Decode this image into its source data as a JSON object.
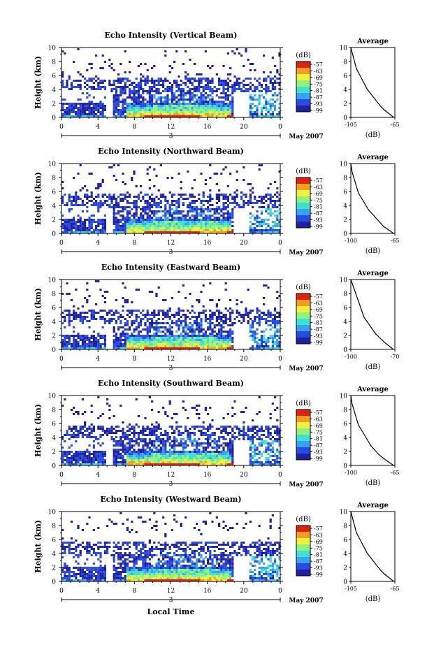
{
  "x_ticks": [
    "0",
    "4",
    "8",
    "12",
    "16",
    "20",
    "0"
  ],
  "date_label": "3",
  "month_label": "May 2007",
  "xlabel": "Local Time",
  "ylabel": "Height (km)",
  "y_ticks": [
    "0",
    "2",
    "4",
    "6",
    "8",
    "10"
  ],
  "cbar_unit": "(dB)",
  "cbar_ticks": [
    "-57",
    "-63",
    "-69",
    "-75",
    "-81",
    "-87",
    "-93",
    "-99"
  ],
  "avg_title": "Average",
  "avg_xlabel": "(dB)",
  "colors": {
    "scale": [
      "#2020a0",
      "#2a4be0",
      "#3aa0f0",
      "#40e0d0",
      "#90f080",
      "#f0f040",
      "#f0a020",
      "#e02010"
    ]
  },
  "chart_data": [
    {
      "type": "heatmap",
      "title": "Echo Intensity (Vertical Beam)",
      "xlim": [
        0,
        24
      ],
      "ylim": [
        0,
        10
      ],
      "avg": {
        "type": "line",
        "xlim": [
          -105,
          -65
        ],
        "xticks": [
          "-105",
          "-65"
        ],
        "x": [
          -66,
          -70,
          -74,
          -78,
          -81,
          -84,
          -87,
          -90,
          -92,
          -94,
          -96,
          -98,
          -100,
          -101,
          -102,
          -103,
          -104,
          -105
        ],
        "y": [
          0,
          0.5,
          1,
          1.6,
          2.2,
          2.8,
          3.4,
          4,
          4.6,
          5.2,
          5.8,
          6.4,
          7,
          7.6,
          8.2,
          8.8,
          9.4,
          10
        ]
      }
    },
    {
      "type": "heatmap",
      "title": "Echo Intensity (Northward Beam)",
      "xlim": [
        0,
        24
      ],
      "ylim": [
        0,
        10
      ],
      "avg": {
        "type": "line",
        "xlim": [
          -100,
          -65
        ],
        "xticks": [
          "-100",
          "-65"
        ],
        "x": [
          -66,
          -70,
          -74,
          -77,
          -80,
          -83,
          -86,
          -88,
          -90,
          -92,
          -94,
          -95,
          -96,
          -97,
          -98,
          -99,
          -99.5,
          -100
        ],
        "y": [
          0,
          0.5,
          1,
          1.6,
          2.2,
          2.8,
          3.4,
          4,
          4.6,
          5.2,
          5.8,
          6.4,
          7,
          7.6,
          8.2,
          8.8,
          9.4,
          10
        ]
      }
    },
    {
      "type": "heatmap",
      "title": "Echo Intensity (Eastward Beam)",
      "xlim": [
        0,
        24
      ],
      "ylim": [
        0,
        10
      ],
      "avg": {
        "type": "line",
        "xlim": [
          -100,
          -70
        ],
        "xticks": [
          "-100",
          "-70"
        ],
        "x": [
          -71,
          -74,
          -77,
          -80,
          -83,
          -85,
          -87,
          -89,
          -91,
          -92,
          -93,
          -94,
          -95,
          -96,
          -97,
          -98,
          -99,
          -100
        ],
        "y": [
          0,
          0.5,
          1,
          1.6,
          2.2,
          2.8,
          3.4,
          4,
          4.6,
          5.2,
          5.8,
          6.4,
          7,
          7.6,
          8.2,
          8.8,
          9.4,
          10
        ]
      }
    },
    {
      "type": "heatmap",
      "title": "Echo Intensity (Southward Beam)",
      "xlim": [
        0,
        24
      ],
      "ylim": [
        0,
        10
      ],
      "avg": {
        "type": "line",
        "xlim": [
          -100,
          -65
        ],
        "xticks": [
          "-100",
          "-65"
        ],
        "x": [
          -66,
          -70,
          -74,
          -78,
          -81,
          -84,
          -86,
          -88,
          -90,
          -92,
          -94,
          -95,
          -96,
          -97,
          -98,
          -99,
          -99.5,
          -100
        ],
        "y": [
          0,
          0.5,
          1,
          1.6,
          2.2,
          2.8,
          3.4,
          4,
          4.6,
          5.2,
          5.8,
          6.4,
          7,
          7.6,
          8.2,
          8.8,
          9.4,
          10
        ]
      }
    },
    {
      "type": "heatmap",
      "title": "Echo Intensity (Westward Beam)",
      "xlim": [
        0,
        24
      ],
      "ylim": [
        0,
        10
      ],
      "avg": {
        "type": "line",
        "xlim": [
          -105,
          -65
        ],
        "xticks": [
          "-105",
          "-65"
        ],
        "x": [
          -66,
          -70,
          -74,
          -78,
          -81,
          -84,
          -87,
          -90,
          -92,
          -94,
          -96,
          -98,
          -100,
          -101,
          -102,
          -103,
          -104,
          -105
        ],
        "y": [
          0,
          0.5,
          1,
          1.6,
          2.2,
          2.8,
          3.4,
          4,
          4.6,
          5.2,
          5.8,
          6.4,
          7,
          7.6,
          8.2,
          8.8,
          9.4,
          10
        ]
      }
    }
  ]
}
